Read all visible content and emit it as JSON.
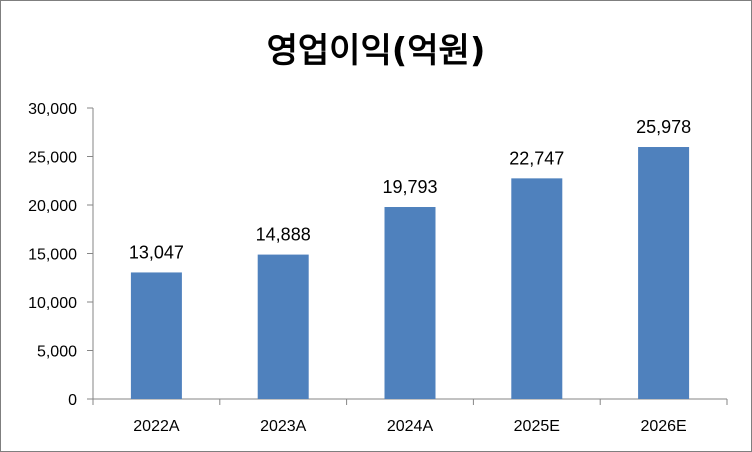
{
  "chart_data": {
    "type": "bar",
    "title": "영업이익(억원)",
    "xlabel": "",
    "ylabel": "",
    "categories": [
      "2022A",
      "2023A",
      "2024A",
      "2025E",
      "2026E"
    ],
    "values": [
      13047,
      14888,
      19793,
      22747,
      25978
    ],
    "value_labels": [
      "13,047",
      "14,888",
      "19,793",
      "22,747",
      "25,978"
    ],
    "ylim": [
      0,
      30000
    ],
    "yticks": [
      0,
      5000,
      10000,
      15000,
      20000,
      25000,
      30000
    ],
    "ytick_labels": [
      "0",
      "5,000",
      "10,000",
      "15,000",
      "20,000",
      "25,000",
      "30,000"
    ],
    "bar_color": "#4f81bd",
    "grid": false,
    "legend": "none"
  }
}
